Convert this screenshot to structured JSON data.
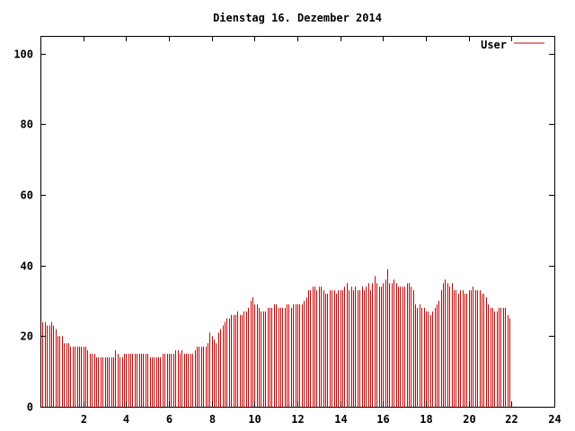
{
  "chart_data": {
    "type": "bar",
    "title": "Dienstag 16. Dezember 2014",
    "xlabel": "",
    "ylabel": "",
    "xlim": [
      0,
      24
    ],
    "ylim": [
      0,
      105
    ],
    "x_ticks": [
      2,
      4,
      6,
      8,
      10,
      12,
      14,
      16,
      18,
      20,
      22,
      24
    ],
    "y_ticks": [
      0,
      20,
      40,
      60,
      80,
      100
    ],
    "grid": false,
    "legend_position": "top-right",
    "colors": {
      "series": "#cc0000",
      "axis": "#000000",
      "background": "#ffffff"
    },
    "series": [
      {
        "name": "User",
        "x_step_hours": 0.1,
        "values": [
          24,
          24,
          24,
          23,
          23,
          24,
          23,
          22,
          20,
          20,
          20,
          18,
          18,
          18,
          17,
          17,
          17,
          17,
          17,
          17,
          17,
          17,
          16,
          15,
          15,
          15,
          14,
          14,
          14,
          14,
          14,
          14,
          14,
          14,
          14,
          16,
          15,
          14,
          14,
          15,
          15,
          15,
          15,
          15,
          15,
          15,
          15,
          15,
          15,
          15,
          15,
          14,
          14,
          14,
          14,
          14,
          14,
          15,
          15,
          15,
          15,
          15,
          15,
          16,
          16,
          15,
          16,
          15,
          15,
          15,
          15,
          15,
          16,
          17,
          17,
          17,
          17,
          17,
          18,
          21,
          20,
          19,
          18,
          21,
          22,
          23,
          24,
          25,
          25,
          26,
          26,
          26,
          27,
          26,
          26,
          27,
          27,
          28,
          30,
          31,
          29,
          29,
          28,
          27,
          27,
          27,
          28,
          28,
          28,
          29,
          29,
          28,
          28,
          28,
          28,
          29,
          29,
          28,
          29,
          29,
          29,
          29,
          29,
          30,
          31,
          33,
          33,
          34,
          34,
          33,
          34,
          34,
          33,
          32,
          32,
          33,
          33,
          33,
          32,
          33,
          33,
          33,
          34,
          35,
          33,
          34,
          33,
          34,
          33,
          33,
          34,
          33,
          34,
          35,
          33,
          35,
          37,
          35,
          34,
          34,
          35,
          36,
          39,
          35,
          35,
          36,
          35,
          34,
          34,
          34,
          34,
          35,
          35,
          34,
          33,
          29,
          28,
          29,
          28,
          28,
          27,
          27,
          26,
          27,
          28,
          29,
          30,
          33,
          35,
          36,
          35,
          34,
          35,
          33,
          33,
          32,
          33,
          33,
          32,
          32,
          33,
          33,
          34,
          33,
          33,
          33,
          32,
          32,
          31,
          29,
          28,
          28,
          27,
          27,
          28,
          28,
          28,
          28,
          26,
          25
        ]
      }
    ]
  }
}
